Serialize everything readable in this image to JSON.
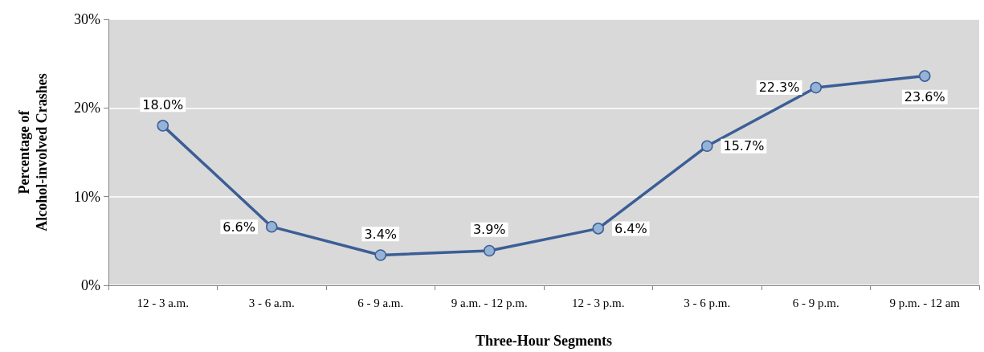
{
  "chart_data": {
    "type": "line",
    "xlabel": "Three-Hour Segments",
    "ylabel": "Percentage of\nAlcohol-involved Crashes",
    "categories": [
      "12 - 3 a.m.",
      "3 - 6 a.m.",
      "6 - 9 a.m.",
      "9 a.m. - 12 p.m.",
      "12 - 3 p.m.",
      "3 - 6 p.m.",
      "6 - 9 p.m.",
      "9 p.m. - 12 am"
    ],
    "series": [
      {
        "color": "#3b5e95",
        "values": [
          18.0,
          6.6,
          3.4,
          3.9,
          6.4,
          15.7,
          22.3,
          23.6
        ],
        "value_labels": [
          "18.0%",
          "6.6%",
          "3.4%",
          "3.9%",
          "6.4%",
          "15.7%",
          "22.3%",
          "23.6%"
        ]
      }
    ],
    "ylim": [
      0,
      30
    ],
    "yticks": [
      {
        "value": 0,
        "label": "0%"
      },
      {
        "value": 10,
        "label": "10%"
      },
      {
        "value": 20,
        "label": "20%"
      },
      {
        "value": 30,
        "label": "30%"
      }
    ],
    "grid": "y",
    "marker": "circle",
    "line_style": "solid"
  }
}
